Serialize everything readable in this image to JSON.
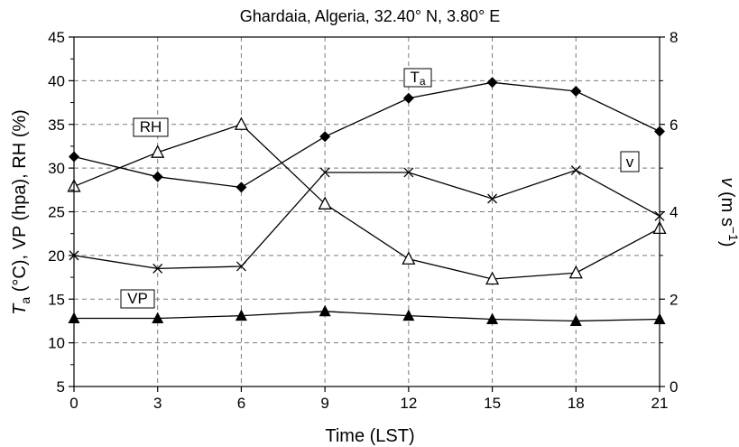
{
  "chart_data": {
    "type": "line",
    "title": "Ghardaia, Algeria, 32.40° N, 3.80° E",
    "xlabel": "Time (LST)",
    "ylabel": "Ta (°C), VP (hpa), RH (%)",
    "ylabel_parts": {
      "sym": "T",
      "sub": "a",
      "rest": " (°C), VP (hpa), RH (%)"
    },
    "y2label": "v (m s-1)",
    "y2label_parts": {
      "sym": "v",
      "rest": " (m s",
      "sup": "−1",
      "end": ")"
    },
    "x": [
      0,
      3,
      6,
      9,
      12,
      15,
      18,
      21
    ],
    "xlim": [
      0,
      21
    ],
    "ylim": [
      5,
      45
    ],
    "y2lim": [
      0,
      8
    ],
    "x_ticks": [
      "0",
      "3",
      "6",
      "9",
      "12",
      "15",
      "18",
      "21"
    ],
    "y_ticks": [
      "5",
      "10",
      "15",
      "20",
      "25",
      "30",
      "35",
      "40",
      "45"
    ],
    "y2_ticks": [
      "0",
      "2",
      "4",
      "6",
      "8"
    ],
    "grid": true,
    "series": [
      {
        "name": "Ta",
        "axis": "left",
        "marker": "diamond",
        "values": [
          31.3,
          29.0,
          27.8,
          33.6,
          38.0,
          39.8,
          38.8,
          34.2
        ]
      },
      {
        "name": "RH",
        "axis": "left",
        "marker": "triangle-open",
        "values": [
          27.9,
          31.8,
          35.0,
          25.9,
          19.6,
          17.3,
          18.0,
          23.1
        ]
      },
      {
        "name": "v",
        "axis": "right",
        "marker": "x",
        "values": [
          3.0,
          2.7,
          2.75,
          4.9,
          4.9,
          4.3,
          4.95,
          3.9
        ]
      },
      {
        "name": "VP",
        "axis": "left",
        "marker": "triangle",
        "values": [
          12.8,
          12.8,
          13.1,
          13.6,
          13.1,
          12.7,
          12.5,
          12.7
        ]
      }
    ],
    "annotations": [
      {
        "text": "Ta",
        "sym": "T",
        "sub": "a",
        "series": "Ta"
      },
      {
        "text": "RH",
        "series": "RH"
      },
      {
        "text": "v",
        "series": "v"
      },
      {
        "text": "VP",
        "series": "VP"
      }
    ]
  }
}
